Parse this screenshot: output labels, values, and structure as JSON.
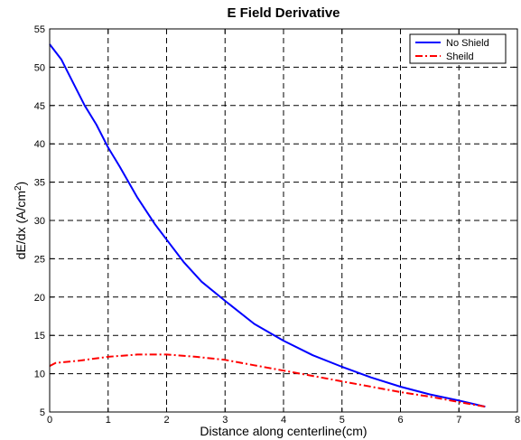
{
  "chart_data": {
    "type": "line",
    "title": "E Field Derivative",
    "xlabel": "Distance along centerline(cm)",
    "ylabel": {
      "main": "dE/dx (A/cm",
      "superscript": "2",
      "close": ")"
    },
    "xlim": [
      0,
      8
    ],
    "ylim": [
      5,
      55
    ],
    "xticks": [
      0,
      1,
      2,
      3,
      4,
      5,
      6,
      7,
      8
    ],
    "yticks": [
      5,
      10,
      15,
      20,
      25,
      30,
      35,
      40,
      45,
      50,
      55
    ],
    "grid": true,
    "legend_position": "top-right",
    "series": [
      {
        "name": "No Shield",
        "color": "#0000ff",
        "style": "solid",
        "x": [
          0,
          0.2,
          0.4,
          0.6,
          0.8,
          1.0,
          1.2,
          1.5,
          1.8,
          2.0,
          2.3,
          2.6,
          3.0,
          3.5,
          4.0,
          4.5,
          5.0,
          5.5,
          6.0,
          6.5,
          7.0,
          7.45
        ],
        "y": [
          53,
          51,
          48,
          45,
          42.5,
          39.5,
          37,
          33,
          29.5,
          27.5,
          24.5,
          22,
          19.5,
          16.5,
          14.3,
          12.4,
          10.9,
          9.5,
          8.3,
          7.3,
          6.5,
          5.7
        ]
      },
      {
        "name": "Sheild",
        "color": "#ff0000",
        "style": "dashdot",
        "x": [
          0,
          0.1,
          0.5,
          1.0,
          1.5,
          2.0,
          2.5,
          3.0,
          3.5,
          4.0,
          4.5,
          5.0,
          5.5,
          6.0,
          6.5,
          7.0,
          7.45
        ],
        "y": [
          11.0,
          11.4,
          11.7,
          12.2,
          12.5,
          12.5,
          12.2,
          11.8,
          11.1,
          10.4,
          9.7,
          9.0,
          8.3,
          7.6,
          7.0,
          6.3,
          5.7
        ]
      }
    ]
  }
}
